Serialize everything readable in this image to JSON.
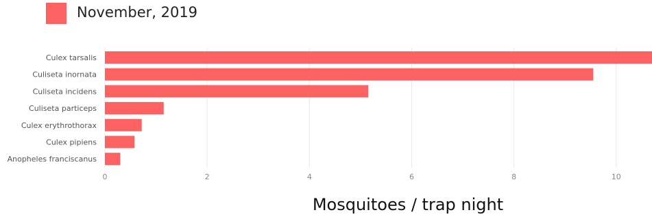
{
  "chart_data": {
    "type": "bar",
    "orientation": "horizontal",
    "legend": {
      "label": "November, 2019",
      "color": "#fc6262",
      "placement": "top-left"
    },
    "categories": [
      "Culex tarsalis",
      "Culiseta inornata",
      "Culiseta incidens",
      "Culiseta particeps",
      "Culex erythrothorax",
      "Culex pipiens",
      "Anopheles franciscanus"
    ],
    "series": [
      {
        "name": "November, 2019",
        "values": [
          10.7,
          9.55,
          5.15,
          1.15,
          0.72,
          0.58,
          0.3
        ]
      }
    ],
    "xlabel": "Mosquitoes / trap night",
    "xlim": [
      0,
      10.7
    ],
    "xticks": [
      "0",
      "2",
      "4",
      "6",
      "8",
      "10"
    ],
    "xtick_values": [
      0,
      2,
      4,
      6,
      8,
      10
    ],
    "grid": true,
    "colors": {
      "bar": "#fc6262",
      "grid": "#e8e8e8",
      "tick_text": "#888888",
      "category_text": "#555555"
    }
  }
}
